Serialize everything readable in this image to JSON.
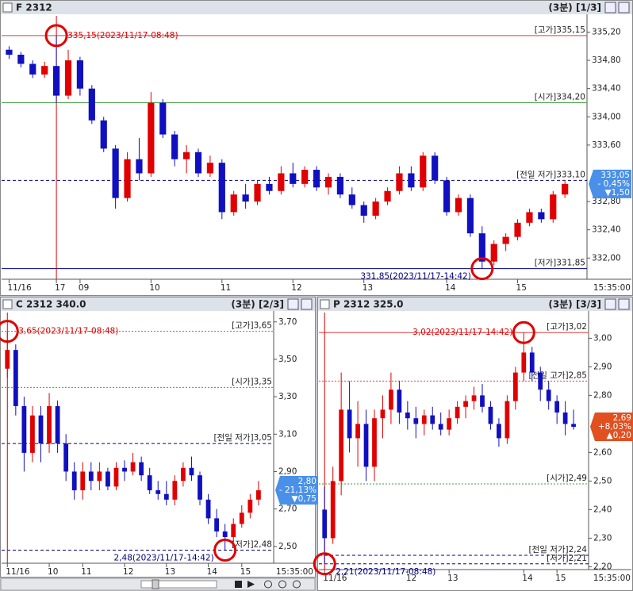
{
  "chart_data": [
    {
      "type": "candlestick",
      "title": "F 2312",
      "subtitle": "(3분) [1/3]",
      "time_label": "15:35:00",
      "up_color": "#e00000",
      "down_color": "#1010c0",
      "categories": [
        "11/16",
        null,
        null,
        null,
        "17",
        null,
        "09",
        null,
        null,
        null,
        null,
        null,
        "10",
        null,
        null,
        null,
        null,
        null,
        "11",
        null,
        null,
        null,
        null,
        null,
        "12",
        null,
        null,
        null,
        null,
        null,
        "13",
        null,
        null,
        null,
        null,
        null,
        null,
        "14",
        null,
        null,
        null,
        null,
        null,
        "15",
        null,
        null,
        null,
        null
      ],
      "ohlc": [
        [
          334.95,
          335.0,
          334.82,
          334.88
        ],
        [
          334.88,
          334.92,
          334.7,
          334.75
        ],
        [
          334.75,
          334.8,
          334.55,
          334.6
        ],
        [
          334.6,
          334.78,
          334.55,
          334.72
        ],
        [
          334.72,
          335.15,
          334.2,
          334.3
        ],
        [
          334.3,
          334.95,
          334.25,
          334.8
        ],
        [
          334.8,
          334.85,
          334.3,
          334.4
        ],
        [
          334.4,
          334.45,
          333.9,
          333.95
        ],
        [
          333.95,
          334.0,
          333.5,
          333.55
        ],
        [
          333.55,
          333.6,
          332.7,
          332.85
        ],
        [
          332.85,
          333.5,
          332.8,
          333.4
        ],
        [
          333.4,
          333.7,
          333.1,
          333.2
        ],
        [
          333.2,
          334.35,
          333.15,
          334.2
        ],
        [
          334.2,
          334.25,
          333.7,
          333.75
        ],
        [
          333.75,
          333.8,
          333.3,
          333.4
        ],
        [
          333.4,
          333.6,
          333.2,
          333.5
        ],
        [
          333.5,
          333.55,
          333.15,
          333.2
        ],
        [
          333.2,
          333.45,
          333.15,
          333.35
        ],
        [
          333.35,
          333.4,
          332.55,
          332.65
        ],
        [
          332.65,
          332.95,
          332.6,
          332.9
        ],
        [
          332.9,
          333.05,
          332.7,
          332.8
        ],
        [
          332.8,
          333.1,
          332.75,
          333.05
        ],
        [
          333.05,
          333.15,
          332.9,
          332.95
        ],
        [
          332.95,
          333.3,
          332.9,
          333.2
        ],
        [
          333.2,
          333.35,
          333.0,
          333.05
        ],
        [
          333.05,
          333.3,
          333.0,
          333.25
        ],
        [
          333.25,
          333.3,
          332.95,
          333.0
        ],
        [
          333.0,
          333.2,
          332.9,
          333.15
        ],
        [
          333.15,
          333.2,
          332.85,
          332.9
        ],
        [
          332.9,
          333.0,
          332.7,
          332.75
        ],
        [
          332.75,
          332.8,
          332.5,
          332.6
        ],
        [
          332.6,
          332.85,
          332.55,
          332.8
        ],
        [
          332.8,
          333.0,
          332.75,
          332.95
        ],
        [
          332.95,
          333.3,
          332.9,
          333.2
        ],
        [
          333.2,
          333.3,
          332.95,
          333.0
        ],
        [
          333.0,
          333.5,
          332.95,
          333.45
        ],
        [
          333.45,
          333.5,
          333.05,
          333.1
        ],
        [
          333.1,
          333.15,
          332.6,
          332.65
        ],
        [
          332.65,
          332.9,
          332.6,
          332.85
        ],
        [
          332.85,
          332.9,
          332.3,
          332.35
        ],
        [
          332.35,
          332.45,
          331.85,
          331.95
        ],
        [
          331.95,
          332.25,
          331.9,
          332.2
        ],
        [
          332.2,
          332.35,
          332.1,
          332.3
        ],
        [
          332.3,
          332.55,
          332.25,
          332.5
        ],
        [
          332.5,
          332.7,
          332.45,
          332.65
        ],
        [
          332.65,
          332.7,
          332.5,
          332.55
        ],
        [
          332.55,
          332.95,
          332.5,
          332.9
        ],
        [
          332.9,
          333.1,
          332.85,
          333.05
        ]
      ],
      "ylim": [
        331.7,
        335.43
      ],
      "yticks": [
        {
          "value": 335.2,
          "label": "335,20"
        },
        {
          "value": 334.8,
          "label": "334,80"
        },
        {
          "value": 334.4,
          "label": "334,40"
        },
        {
          "value": 334,
          "label": "334,00"
        },
        {
          "value": 333.6,
          "label": "333,60"
        },
        {
          "value": 332.8,
          "label": "332,80"
        },
        {
          "value": 332.4,
          "label": "332,40"
        },
        {
          "value": 332,
          "label": "332,00"
        }
      ],
      "annotations": [
        {
          "label": "[고가]335,15",
          "value": 335.15,
          "color": "#e04040",
          "style": "solid"
        },
        {
          "label": "[시가]334,20",
          "value": 334.2,
          "color": "#40a040",
          "style": "solid"
        },
        {
          "label": "[전일 저가]333,10",
          "value": 333.1,
          "color": "#000080",
          "style": "dashed"
        },
        {
          "label": "[저가]331,85",
          "value": 331.85,
          "color": "#000080",
          "style": "solid"
        }
      ],
      "markers": [
        {
          "label": "335,15(2023/11/17-08:48)",
          "value": 335.15,
          "color": "#e00000"
        },
        {
          "label": "331,85(2023/11/17-14:42)",
          "value": 331.85,
          "color": "#000080"
        }
      ],
      "price_box": {
        "value": 333.05,
        "label": "333,05",
        "change": "- 0,45%",
        "diff": "▼1,50",
        "color": "#4a90e8"
      }
    },
    {
      "type": "candlestick",
      "title": "C 2312 340.0",
      "subtitle": "(3분) [2/3]",
      "time_label": "15:35:00",
      "up_color": "#e00000",
      "down_color": "#1010c0",
      "categories": [
        "11/16",
        null,
        null,
        null,
        null,
        "10",
        null,
        null,
        null,
        "11",
        null,
        null,
        null,
        null,
        "12",
        null,
        null,
        null,
        null,
        "13",
        null,
        null,
        null,
        null,
        "14",
        null,
        null,
        null,
        "15",
        null,
        null
      ],
      "ohlc": [
        [
          3.45,
          3.65,
          3.4,
          3.55
        ],
        [
          3.55,
          3.58,
          3.2,
          3.25
        ],
        [
          3.25,
          3.3,
          2.9,
          3.0
        ],
        [
          3.0,
          3.25,
          2.95,
          3.2
        ],
        [
          3.2,
          3.25,
          2.95,
          3.05
        ],
        [
          3.05,
          3.32,
          3.0,
          3.25
        ],
        [
          3.25,
          3.28,
          3.0,
          3.05
        ],
        [
          3.05,
          3.1,
          2.85,
          2.9
        ],
        [
          2.9,
          2.95,
          2.75,
          2.8
        ],
        [
          2.8,
          2.95,
          2.75,
          2.9
        ],
        [
          2.9,
          2.95,
          2.8,
          2.85
        ],
        [
          2.85,
          2.95,
          2.8,
          2.9
        ],
        [
          2.9,
          2.92,
          2.8,
          2.82
        ],
        [
          2.82,
          2.95,
          2.8,
          2.92
        ],
        [
          2.92,
          2.96,
          2.85,
          2.9
        ],
        [
          2.9,
          3.0,
          2.88,
          2.95
        ],
        [
          2.95,
          2.98,
          2.85,
          2.88
        ],
        [
          2.88,
          2.92,
          2.78,
          2.8
        ],
        [
          2.8,
          2.85,
          2.75,
          2.78
        ],
        [
          2.78,
          2.85,
          2.72,
          2.75
        ],
        [
          2.75,
          2.88,
          2.72,
          2.85
        ],
        [
          2.85,
          2.95,
          2.82,
          2.92
        ],
        [
          2.92,
          2.98,
          2.85,
          2.88
        ],
        [
          2.88,
          2.9,
          2.72,
          2.75
        ],
        [
          2.75,
          2.78,
          2.62,
          2.65
        ],
        [
          2.65,
          2.7,
          2.55,
          2.58
        ],
        [
          2.58,
          2.62,
          2.48,
          2.55
        ],
        [
          2.55,
          2.65,
          2.52,
          2.62
        ],
        [
          2.62,
          2.72,
          2.6,
          2.68
        ],
        [
          2.68,
          2.78,
          2.65,
          2.75
        ],
        [
          2.75,
          2.85,
          2.72,
          2.8
        ]
      ],
      "ylim": [
        2.41,
        3.75
      ],
      "yticks": [
        {
          "value": 3.7,
          "label": "3,70"
        },
        {
          "value": 3.5,
          "label": "3,50"
        },
        {
          "value": 3.3,
          "label": "3,30"
        },
        {
          "value": 3.1,
          "label": "3,10"
        },
        {
          "value": 2.9,
          "label": "2,90"
        },
        {
          "value": 2.7,
          "label": "2,70"
        },
        {
          "value": 2.5,
          "label": "2,50"
        }
      ],
      "annotations": [
        {
          "label": "[고가]3,65",
          "value": 3.65,
          "color": "#e04040",
          "style": "dotted"
        },
        {
          "label": "[시가]3,35",
          "value": 3.35,
          "color": "#40a040",
          "style": "dotted"
        },
        {
          "label": "[전일 저가]3,05",
          "value": 3.05,
          "color": "#000080",
          "style": "dashed"
        },
        {
          "label": "[저가]2,48",
          "value": 2.48,
          "color": "#000080",
          "style": "dashed"
        }
      ],
      "markers": [
        {
          "label": "3,65(2023/11/17-08:48)",
          "value": 3.65,
          "color": "#e00000"
        },
        {
          "label": "2,48(2023/11/17-14:42)",
          "value": 2.48,
          "color": "#000080"
        }
      ],
      "price_box": {
        "value": 2.8,
        "label": "2,80",
        "change": "- 21,13%",
        "diff": "▼0,75",
        "color": "#4a90e8"
      }
    },
    {
      "type": "candlestick",
      "title": "P 2312 325.0",
      "subtitle": "(3분) [3/3]",
      "time_label": "15:35:00",
      "up_color": "#e00000",
      "down_color": "#1010c0",
      "categories": [
        "11/16",
        null,
        null,
        null,
        null,
        null,
        null,
        null,
        null,
        null,
        "12",
        null,
        null,
        null,
        null,
        "13",
        null,
        null,
        null,
        null,
        null,
        null,
        null,
        null,
        "14",
        null,
        null,
        null,
        "15",
        null,
        null
      ],
      "ohlc": [
        [
          2.4,
          2.48,
          2.21,
          2.3
        ],
        [
          2.3,
          2.55,
          2.28,
          2.5
        ],
        [
          2.5,
          2.88,
          2.45,
          2.75
        ],
        [
          2.75,
          2.85,
          2.6,
          2.65
        ],
        [
          2.65,
          2.78,
          2.55,
          2.7
        ],
        [
          2.7,
          2.75,
          2.5,
          2.55
        ],
        [
          2.55,
          2.75,
          2.5,
          2.72
        ],
        [
          2.72,
          2.8,
          2.65,
          2.75
        ],
        [
          2.75,
          2.88,
          2.7,
          2.82
        ],
        [
          2.82,
          2.85,
          2.7,
          2.74
        ],
        [
          2.74,
          2.78,
          2.68,
          2.72
        ],
        [
          2.72,
          2.76,
          2.65,
          2.7
        ],
        [
          2.7,
          2.75,
          2.66,
          2.73
        ],
        [
          2.73,
          2.76,
          2.68,
          2.7
        ],
        [
          2.7,
          2.74,
          2.66,
          2.68
        ],
        [
          2.68,
          2.75,
          2.66,
          2.72
        ],
        [
          2.72,
          2.78,
          2.7,
          2.76
        ],
        [
          2.76,
          2.8,
          2.72,
          2.78
        ],
        [
          2.78,
          2.83,
          2.75,
          2.8
        ],
        [
          2.8,
          2.84,
          2.74,
          2.76
        ],
        [
          2.76,
          2.78,
          2.68,
          2.7
        ],
        [
          2.7,
          2.72,
          2.62,
          2.65
        ],
        [
          2.65,
          2.8,
          2.63,
          2.78
        ],
        [
          2.78,
          2.9,
          2.75,
          2.88
        ],
        [
          2.88,
          3.02,
          2.85,
          2.95
        ],
        [
          2.95,
          2.97,
          2.85,
          2.88
        ],
        [
          2.88,
          2.9,
          2.78,
          2.82
        ],
        [
          2.82,
          2.85,
          2.75,
          2.78
        ],
        [
          2.78,
          2.8,
          2.7,
          2.74
        ],
        [
          2.74,
          2.78,
          2.66,
          2.7
        ],
        [
          2.7,
          2.75,
          2.68,
          2.69
        ]
      ],
      "ylim": [
        2.19,
        3.09
      ],
      "yticks": [
        {
          "value": 3,
          "label": "3,00"
        },
        {
          "value": 2.9,
          "label": "2,90"
        },
        {
          "value": 2.8,
          "label": "2,80"
        },
        {
          "value": 2.6,
          "label": "2,60"
        },
        {
          "value": 2.5,
          "label": "2,50"
        },
        {
          "value": 2.4,
          "label": "2,40"
        },
        {
          "value": 2.3,
          "label": "2,30"
        },
        {
          "value": 2.2,
          "label": "2,20"
        }
      ],
      "annotations": [
        {
          "label": "[고가]3,02",
          "value": 3.02,
          "color": "#e04040",
          "style": "solid"
        },
        {
          "label": "[전일 고가]2,85",
          "value": 2.85,
          "color": "#e04040",
          "style": "dotted"
        },
        {
          "label": "[시가]2,49",
          "value": 2.49,
          "color": "#40a040",
          "style": "dotted"
        },
        {
          "label": "[전일 저가]2,24",
          "value": 2.24,
          "color": "#000080",
          "style": "dashed"
        },
        {
          "label": "[저가]2,21",
          "value": 2.21,
          "color": "#000080",
          "style": "dashed"
        }
      ],
      "markers": [
        {
          "label": "3,02(2023/11/17-14:42)",
          "value": 3.02,
          "color": "#e00000"
        },
        {
          "label": "2,21(2023/11/17-08:48)",
          "value": 2.21,
          "color": "#000080"
        }
      ],
      "price_box": {
        "value": 2.69,
        "label": "2,69",
        "change": "+8,03%",
        "diff": "▲0,20",
        "color": "#e05020"
      }
    }
  ]
}
